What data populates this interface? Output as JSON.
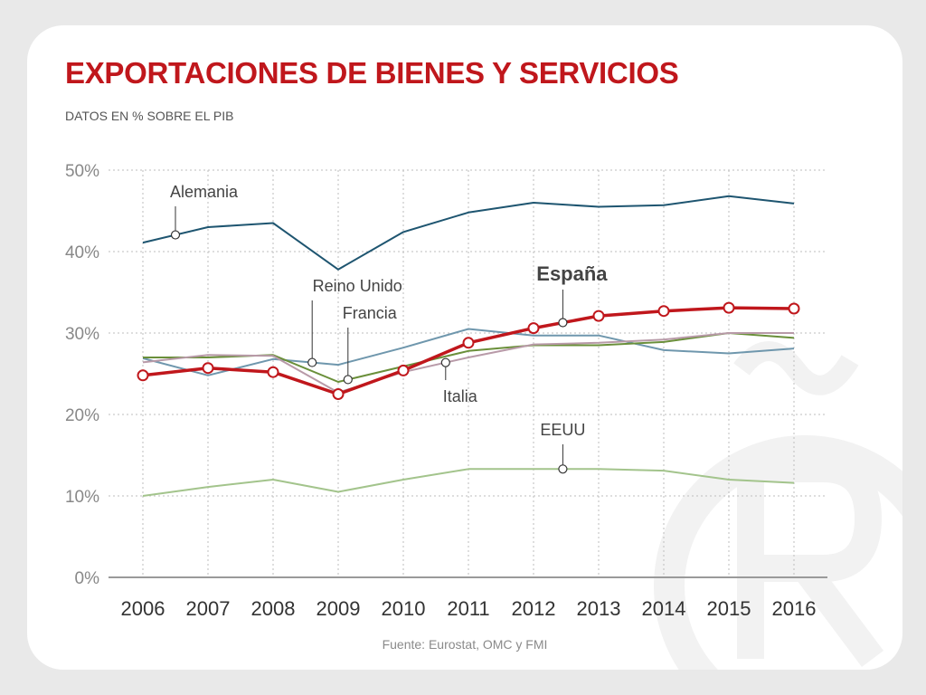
{
  "title": "EXPORTACIONES DE BIENES Y SERVICIOS",
  "subtitle": "DATOS EN % SOBRE EL PIB",
  "source": "Fuente: Eurostat, OMC y FMI",
  "chart_data": {
    "type": "line",
    "x": [
      2006,
      2007,
      2008,
      2009,
      2010,
      2011,
      2012,
      2013,
      2014,
      2015,
      2016
    ],
    "xtick_labels": [
      "2006",
      "2007",
      "2008",
      "2009",
      "2010",
      "2011",
      "2012",
      "2013",
      "2014",
      "2015",
      "2016"
    ],
    "ylim": [
      0,
      50
    ],
    "yticks": [
      0,
      10,
      20,
      30,
      40,
      50
    ],
    "ytick_labels": [
      "0%",
      "10%",
      "20%",
      "30%",
      "40%",
      "50%"
    ],
    "grid": true,
    "series": [
      {
        "name": "Alemania",
        "color": "#1e5570",
        "values": [
          41.1,
          43.0,
          43.5,
          37.8,
          42.4,
          44.8,
          46.0,
          45.5,
          45.7,
          46.8,
          45.9
        ],
        "label_at": 2006.5
      },
      {
        "name": "Reino Unido",
        "color": "#6f97ad",
        "values": [
          26.9,
          24.8,
          26.8,
          26.1,
          28.2,
          30.5,
          29.7,
          29.7,
          27.9,
          27.5,
          28.1
        ],
        "label_at": 2008.6
      },
      {
        "name": "Francia",
        "color": "#6a8f3a",
        "values": [
          27.0,
          27.0,
          27.3,
          24.0,
          25.9,
          27.8,
          28.5,
          28.5,
          28.9,
          30.0,
          29.4
        ],
        "label_at": 2009.15
      },
      {
        "name": "Italia",
        "color": "#b89aa8",
        "values": [
          26.4,
          27.3,
          27.2,
          22.7,
          25.2,
          27.0,
          28.6,
          28.8,
          29.2,
          30.0,
          30.0
        ],
        "label_at": 2010.65
      },
      {
        "name": "EEUU",
        "color": "#a3c48c",
        "values": [
          10.0,
          11.1,
          12.0,
          10.5,
          12.0,
          13.3,
          13.3,
          13.3,
          13.1,
          12.0,
          11.6
        ],
        "label_at": 2012.45
      },
      {
        "name": "España",
        "color": "#c0171c",
        "values": [
          24.8,
          25.7,
          25.2,
          22.5,
          25.4,
          28.8,
          30.6,
          32.1,
          32.7,
          33.1,
          33.0
        ],
        "label_at": 2012.45,
        "highlight": true
      }
    ]
  }
}
